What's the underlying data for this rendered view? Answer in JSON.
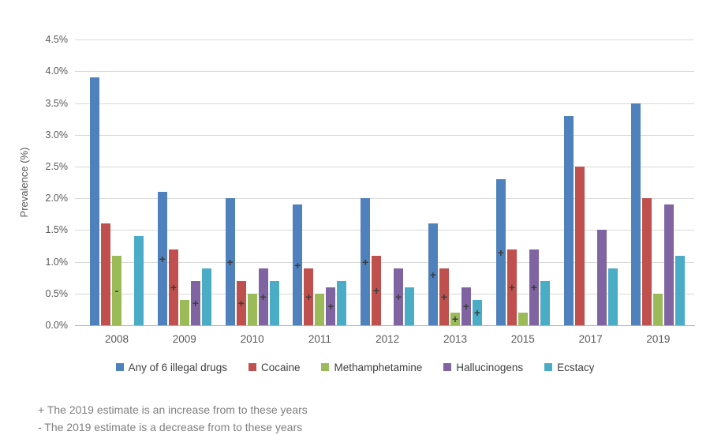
{
  "chart_data": {
    "type": "bar",
    "title": "",
    "ylabel": "Prevalence (%)",
    "xlabel": "",
    "ylim": [
      0,
      4.5
    ],
    "ytick_step": 0.5,
    "ytick_labels": [
      "0.0%",
      "0.5%",
      "1.0%",
      "1.5%",
      "2.0%",
      "2.5%",
      "3.0%",
      "3.5%",
      "4.0%",
      "4.5%"
    ],
    "grid": true,
    "legend_position": "bottom",
    "categories": [
      "2008",
      "2009",
      "2010",
      "2011",
      "2012",
      "2013",
      "2015",
      "2017",
      "2019"
    ],
    "series": [
      {
        "name": "Any of 6 illegal drugs",
        "color": "#4F81BD",
        "values": [
          3.9,
          2.1,
          2.0,
          1.9,
          2.0,
          1.6,
          2.3,
          3.3,
          3.5
        ],
        "markers": [
          null,
          "+",
          "+",
          "+",
          "+",
          "+",
          "+",
          null,
          null
        ]
      },
      {
        "name": "Cocaine",
        "color": "#C0504D",
        "values": [
          1.6,
          1.2,
          0.7,
          0.9,
          1.1,
          0.9,
          1.2,
          2.5,
          2.0
        ],
        "markers": [
          null,
          "+",
          "+",
          "+",
          "+",
          "+",
          "+",
          null,
          null
        ]
      },
      {
        "name": "Methamphetamine",
        "color": "#9BBB59",
        "values": [
          1.1,
          0.4,
          0.5,
          0.5,
          null,
          0.2,
          0.2,
          null,
          0.5
        ],
        "markers": [
          "-",
          null,
          null,
          null,
          null,
          "+",
          null,
          null,
          null
        ]
      },
      {
        "name": "Hallucinogens",
        "color": "#8064A2",
        "values": [
          null,
          0.7,
          0.9,
          0.6,
          0.9,
          0.6,
          1.2,
          1.5,
          1.9
        ],
        "markers": [
          null,
          "+",
          "+",
          "+",
          "+",
          "+",
          "+",
          null,
          null
        ]
      },
      {
        "name": "Ecstacy",
        "color": "#4BACC6",
        "values": [
          1.4,
          0.9,
          0.7,
          0.7,
          0.6,
          0.4,
          0.7,
          0.9,
          1.1
        ],
        "markers": [
          null,
          null,
          null,
          null,
          null,
          "+",
          null,
          null,
          null
        ]
      }
    ],
    "marker_meaning": {
      "plus": "increase vs 2019 estimate",
      "minus": "decrease vs 2019 estimate"
    }
  },
  "footnotes": {
    "line1": "+ The 2019 estimate is an increase from to these years",
    "line2": "- The 2019 estimate is a decrease from to these years"
  },
  "colors": {
    "gridline": "#D9D9D9",
    "axis_line": "#B3B3B3",
    "axis_text": "#595959",
    "legend_text": "#404040",
    "footnote_text": "#7F7F7F",
    "marker": "#3D3D3D"
  }
}
